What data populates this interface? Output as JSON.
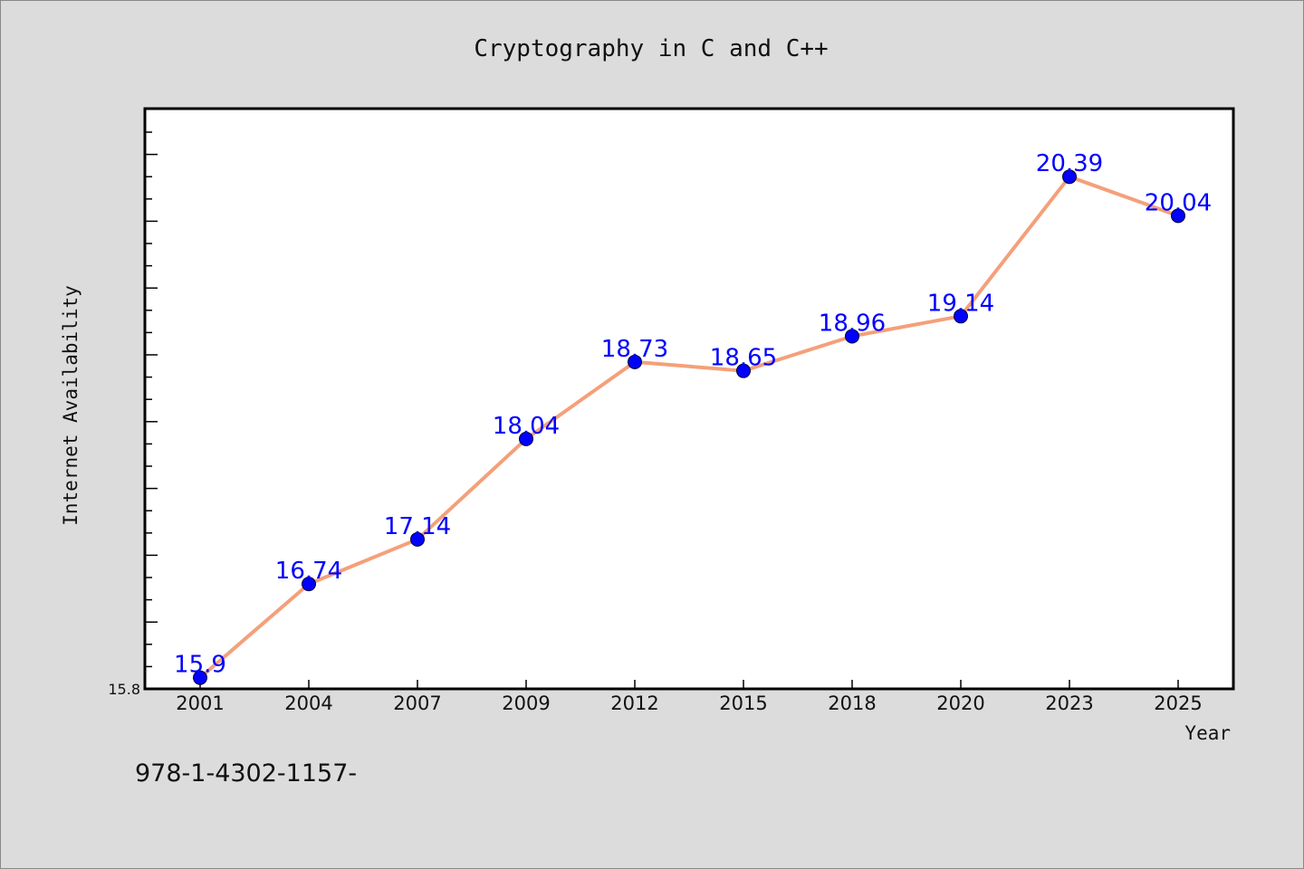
{
  "chart_data": {
    "type": "line",
    "title": "Cryptography in C and C++",
    "xlabel": "Year",
    "ylabel": "Internet Availability",
    "categories": [
      "2001",
      "2004",
      "2007",
      "2009",
      "2012",
      "2015",
      "2018",
      "2020",
      "2023",
      "2025"
    ],
    "series": [
      {
        "values": [
          15.9,
          16.74,
          17.14,
          18.04,
          18.73,
          18.65,
          18.96,
          19.14,
          20.39,
          20.04
        ],
        "labels": [
          "15.9",
          "16.74",
          "17.14",
          "18.04",
          "18.73",
          "18.65",
          "18.96",
          "19.14",
          "20.39",
          "20.04"
        ]
      }
    ],
    "ylim": [
      15.8,
      21.0
    ],
    "yticks_labeled": [
      "15.8"
    ],
    "grid": false,
    "line_color": "#f4a07a",
    "marker_color": "#0000ff",
    "label_color": "#0000ff"
  },
  "footer": {
    "isbn": "978-1-4302-1157-"
  }
}
